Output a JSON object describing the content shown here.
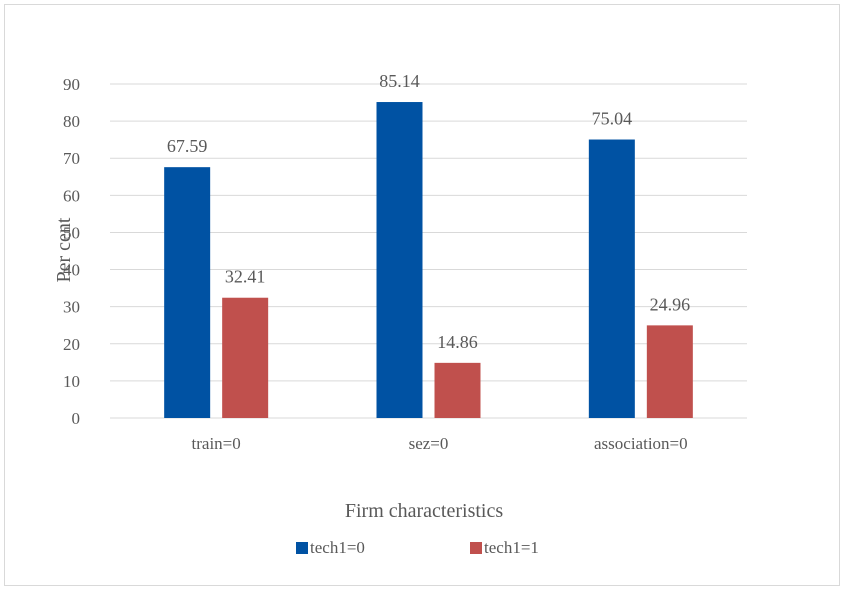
{
  "chart_data": {
    "type": "bar",
    "title": "",
    "xlabel": "Firm characteristics",
    "ylabel": "Per cent",
    "categories": [
      "train=0",
      "sez=0",
      "association=0"
    ],
    "series": [
      {
        "name": "tech1=0",
        "values": [
          67.59,
          85.14,
          75.04
        ],
        "color": "#0052A3"
      },
      {
        "name": "tech1=1",
        "values": [
          32.41,
          14.86,
          24.96
        ],
        "color": "#C0504D"
      }
    ],
    "data_labels": [
      [
        "67.59",
        "85.14",
        "75.04"
      ],
      [
        "32.41",
        "14.86",
        "24.96"
      ]
    ],
    "ylim": [
      0,
      90
    ],
    "yticks": [
      0,
      10,
      20,
      30,
      40,
      50,
      60,
      70,
      80,
      90
    ],
    "grid": true,
    "legend_position": "bottom",
    "gridline_color": "#d9d9d9"
  }
}
